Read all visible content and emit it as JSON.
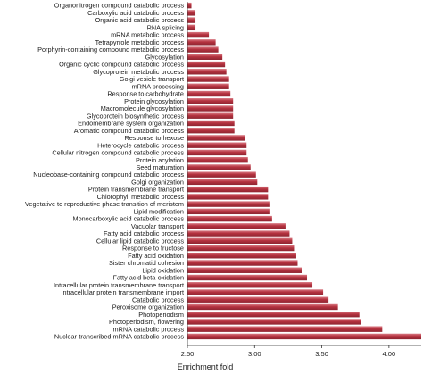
{
  "chart_data": {
    "type": "bar",
    "orientation": "horizontal",
    "title": "",
    "xlabel": "Enrichment fold",
    "ylabel": "",
    "xlim": [
      2.5,
      4.24
    ],
    "xticks": [
      "2.50",
      "3.00",
      "3.50",
      "4.00"
    ],
    "xtick_values": [
      2.5,
      3.0,
      3.5,
      4.0
    ],
    "grid": false,
    "bar_color": "#b5323f",
    "bar_highlight_color": "#d97b84",
    "categories": [
      "Organonitrogen compound catabolic process",
      "Carboxylic acid catabolic process",
      "Organic acid catabolic process",
      "RNA splicing",
      "mRNA metabolic process",
      "Tetrapyrrole metabolic process",
      "Porphyrin-containing compound metabolic process",
      "Glycosylation",
      "Organic cyclic compound catabolic process",
      "Glycoprotein metabolic process",
      "Golgi vesicle transport",
      "mRNA processing",
      "Response to carbohydrate",
      "Protein glycosylation",
      "Macromolecule glycosylation",
      "Glycoprotein biosynthetic process",
      "Endomembrane system organization",
      "Aromatic compound catabolic process",
      "Response to hexose",
      "Heterocycle catabolic process",
      "Cellular nitrogen compound catabolic process",
      "Protein acylation",
      "Seed maturation",
      "Nucleobase-containing compound catabolic process",
      "Golgi organization",
      "Protein transmembrane transport",
      "Chlorophyll metabolic process",
      "Vegetative to reproductive phase transition of meristem",
      "Lipid modification",
      "Monocarboxylic acid catabolic process",
      "Vacuolar transport",
      "Fatty acid catabolic process",
      "Cellular lipid catabolic process",
      "Response to fructose",
      "Fatty acid oxidation",
      "Sister chromatid cohesion",
      "Lipid oxidation",
      "Fatty acid beta-oxidation",
      "Intracellular protein transmembrane transport",
      "Intracellular protein transmembrane import",
      "Catabolic process",
      "Peroxisome organization",
      "Photoperiodism",
      "Photoperiodism, flowering",
      "mRNA catabolic process",
      "Nuclear-transcribed mRNA catabolic process"
    ],
    "values": [
      2.53,
      2.56,
      2.56,
      2.56,
      2.66,
      2.71,
      2.73,
      2.76,
      2.78,
      2.79,
      2.81,
      2.81,
      2.82,
      2.84,
      2.84,
      2.84,
      2.85,
      2.85,
      2.93,
      2.94,
      2.94,
      2.95,
      2.97,
      3.01,
      3.02,
      3.1,
      3.1,
      3.11,
      3.11,
      3.13,
      3.23,
      3.26,
      3.28,
      3.3,
      3.31,
      3.32,
      3.35,
      3.39,
      3.43,
      3.51,
      3.55,
      3.62,
      3.78,
      3.79,
      3.95,
      4.24
    ]
  }
}
